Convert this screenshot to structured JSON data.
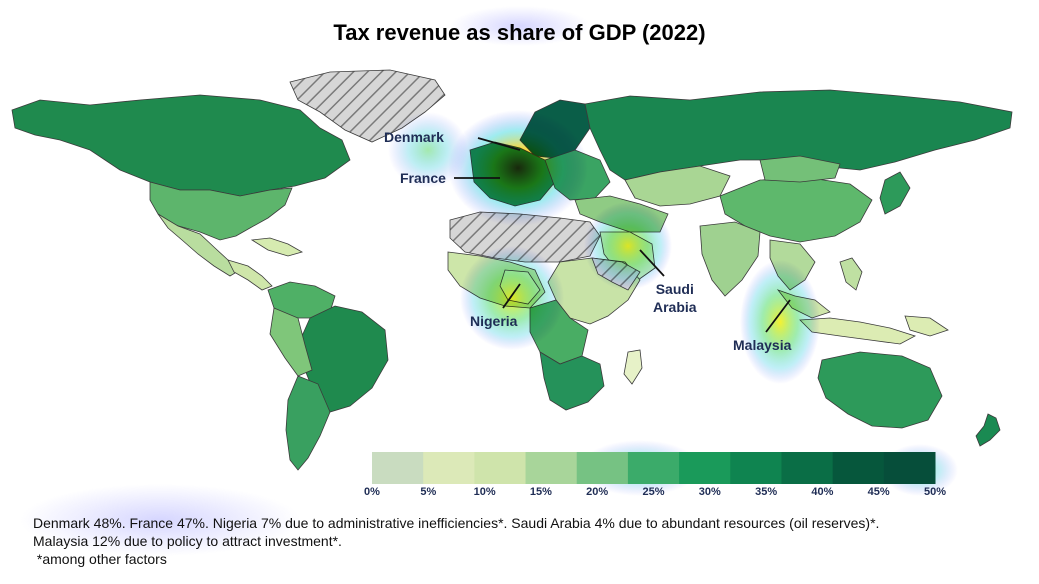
{
  "title": "Tax revenue as share of GDP (2022)",
  "colors": {
    "low": "#e7f2c8",
    "mid": "#52b86a",
    "high": "#065a4a",
    "no_data": "#d6d6d6",
    "borders": "#3b3b3b",
    "label_text": "#1f2d55"
  },
  "callouts": [
    {
      "name": "Denmark",
      "value_pct": 48
    },
    {
      "name": "France",
      "value_pct": 47
    },
    {
      "name": "Nigeria",
      "value_pct": 7
    },
    {
      "name": "Saudi\nArabia",
      "value_pct": 4
    },
    {
      "name": "Malaysia",
      "value_pct": 12
    }
  ],
  "colorbar": {
    "min": 0,
    "max": 50,
    "ticks": [
      "0%",
      "5%",
      "10%",
      "15%",
      "20%",
      "25%",
      "30%",
      "35%",
      "40%",
      "45%",
      "50%"
    ],
    "steps": [
      "#c9dcc0",
      "#dce9b8",
      "#cfe4ab",
      "#a8d59a",
      "#76c283",
      "#3bab6a",
      "#1a9a5a",
      "#0f8450",
      "#0a6e46",
      "#06573c",
      "#064e3a"
    ]
  },
  "footnote": {
    "line1": "Denmark 48%. France 47%. Nigeria 7% due to administrative inefficiencies*. Saudi Arabia 4% due to abundant resources (oil reserves)*.",
    "line2": "Malaysia 12% due to policy to attract investment*.",
    "line3": " *among other factors"
  }
}
